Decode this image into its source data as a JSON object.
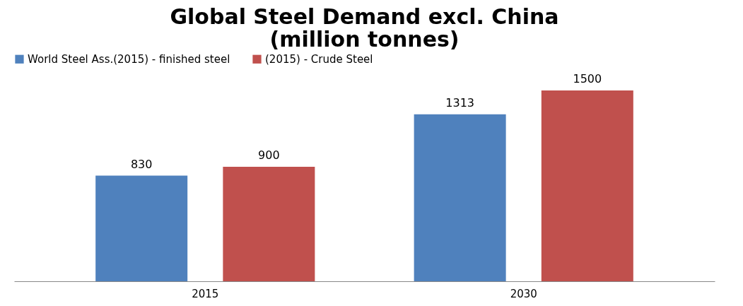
{
  "chart_data": {
    "type": "bar",
    "title": [
      "Global Steel Demand excl. China",
      "(million tonnes)"
    ],
    "categories": [
      "2015",
      "2030"
    ],
    "series": [
      {
        "name": "World Steel Ass.(2015) - finished steel",
        "color": "#4f81bd",
        "values": [
          830,
          1313
        ]
      },
      {
        "name": "(2015) - Crude Steel",
        "color": "#c0504d",
        "values": [
          900,
          1500
        ]
      }
    ],
    "data_labels": true,
    "grid": false,
    "legend": "top"
  }
}
